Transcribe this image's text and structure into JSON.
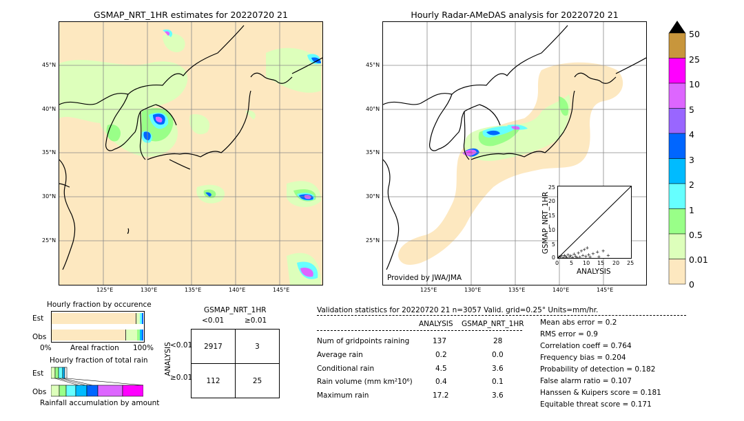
{
  "left_map": {
    "title": "GSMAP_NRT_1HR estimates for 20220720 21",
    "lat_labels": [
      "45°N",
      "40°N",
      "35°N",
      "30°N",
      "25°N"
    ],
    "lon_labels": [
      "125°E",
      "130°E",
      "135°E",
      "140°E",
      "145°E"
    ]
  },
  "right_map": {
    "title": "Hourly Radar-AMeDAS analysis for 20220720 21",
    "lat_labels": [
      "45°N",
      "40°N",
      "35°N",
      "30°N",
      "25°N"
    ],
    "lon_labels": [
      "125°E",
      "130°E",
      "135°E",
      "140°E",
      "145°E"
    ],
    "credit": "Provided by JWA/JMA"
  },
  "colorbar": {
    "labels": [
      "50",
      "25",
      "10",
      "5",
      "4",
      "3",
      "2",
      "1",
      "0.5",
      "0.01",
      "0"
    ],
    "colors": [
      "#c8963c",
      "#ff00ff",
      "#dd66ff",
      "#9966ff",
      "#0066ff",
      "#00bbff",
      "#66ffff",
      "#99ff88",
      "#ddffbb",
      "#fde8c0"
    ]
  },
  "scatter_inset": {
    "xlabel": "ANALYSIS",
    "ylabel": "GSMAP_NRT_1HR",
    "ticks": [
      "0",
      "5",
      "10",
      "15",
      "20",
      "25"
    ]
  },
  "chart_data": {
    "type": "scatter",
    "xlabel": "ANALYSIS",
    "ylabel": "GSMAP_NRT_1HR",
    "xlim": [
      0,
      25
    ],
    "ylim": [
      0,
      25
    ],
    "points": [
      [
        0.3,
        0.5
      ],
      [
        0.8,
        0.4
      ],
      [
        1.2,
        0.8
      ],
      [
        1.8,
        0.3
      ],
      [
        2.2,
        1.0
      ],
      [
        2.6,
        0.6
      ],
      [
        3.0,
        0.2
      ],
      [
        3.5,
        1.2
      ],
      [
        4.0,
        0.5
      ],
      [
        4.4,
        0.9
      ],
      [
        5.0,
        0.3
      ],
      [
        5.5,
        1.5
      ],
      [
        6.0,
        0.7
      ],
      [
        6.5,
        0.2
      ],
      [
        7.0,
        1.8
      ],
      [
        7.5,
        0.4
      ],
      [
        8.0,
        2.5
      ],
      [
        8.5,
        1.0
      ],
      [
        9.0,
        3.0
      ],
      [
        9.5,
        0.6
      ],
      [
        10.0,
        3.6
      ],
      [
        10.5,
        1.2
      ],
      [
        11.0,
        0.4
      ],
      [
        12.0,
        1.6
      ],
      [
        13.5,
        2.2
      ],
      [
        14.0,
        0.5
      ],
      [
        15.5,
        2.5
      ],
      [
        17.2,
        1.0
      ]
    ]
  },
  "fraction_occurrence": {
    "title": "Hourly fraction by occurence",
    "rows": [
      "Est",
      "Obs"
    ],
    "axis_left": "0%",
    "axis_mid": "Areal fraction",
    "axis_right": "100%"
  },
  "fraction_total": {
    "title": "Hourly fraction of total rain",
    "rows": [
      "Est",
      "Obs"
    ],
    "caption": "Rainfall accumulation by amount"
  },
  "contingency": {
    "title": "GSMAP_NRT_1HR",
    "col_headers": [
      "<0.01",
      "≥0.01"
    ],
    "row_axis": "ANALYSIS",
    "row_headers": [
      "<0.01",
      "≥0.01"
    ],
    "cells": [
      [
        "2917",
        "3"
      ],
      [
        "112",
        "25"
      ]
    ]
  },
  "validation": {
    "header": "Validation statistics for 20220720 21  n=3057 Valid. grid=0.25° Units=mm/hr.",
    "col_analysis": "ANALYSIS",
    "col_gsmap": "GSMAP_NRT_1HR",
    "rows": [
      {
        "label": "Num of gridpoints raining",
        "analysis": "137",
        "gsmap": "28"
      },
      {
        "label": "Average rain",
        "analysis": "0.2",
        "gsmap": "0.0"
      },
      {
        "label": "Conditional rain",
        "analysis": "4.5",
        "gsmap": "3.6"
      },
      {
        "label": "Rain volume (mm km²10⁶)",
        "analysis": "0.4",
        "gsmap": "0.1"
      },
      {
        "label": "Maximum rain",
        "analysis": "17.2",
        "gsmap": "3.6"
      }
    ],
    "scores": [
      "Mean abs error =    0.2",
      "RMS error =    0.9",
      "Correlation coeff =  0.764",
      "Frequency bias =  0.204",
      "Probability of detection =  0.182",
      "False alarm ratio =  0.107",
      "Hanssen & Kuipers score =  0.181",
      "Equitable threat score =  0.171"
    ]
  }
}
